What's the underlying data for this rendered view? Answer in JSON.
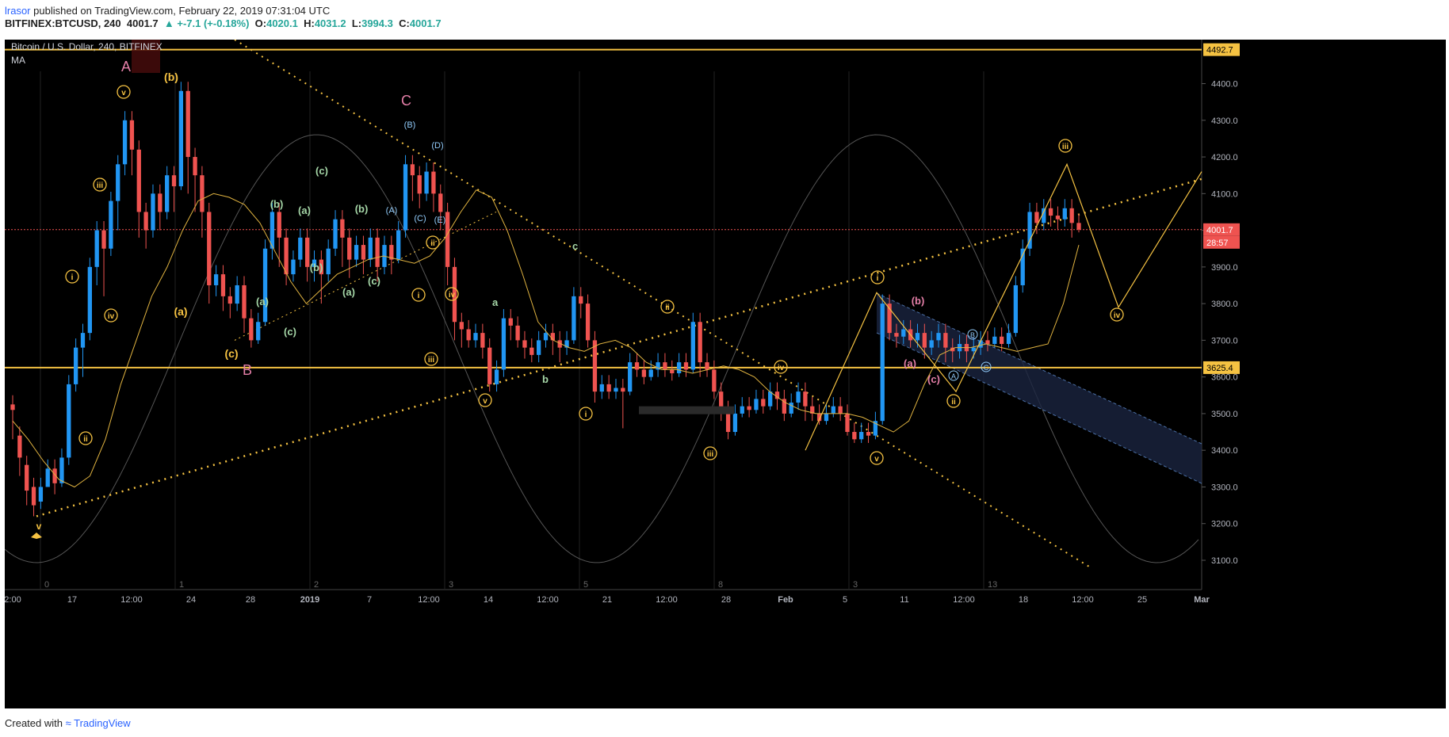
{
  "header": {
    "author": "lrasor",
    "published_text": "published on TradingView.com, February 22, 2019 07:31:04 UTC",
    "symbol": "BITFINEX:BTCUSD, 240",
    "last": "4001.7",
    "change": "▲ +-7.1 (+-0.18%)",
    "o_label": "O:",
    "o_val": "4020.1",
    "h_label": "H:",
    "h_val": "4031.2",
    "l_label": "L:",
    "l_val": "3994.3",
    "c_label": "C:",
    "c_val": "4001.7"
  },
  "legend": {
    "title": "Bitcoin / U.S. Dollar, 240, BITFINEX",
    "indicator": "MA"
  },
  "footer": {
    "created_with": "Created with",
    "brand": "TradingView"
  },
  "colors": {
    "background": "#000000",
    "up": "#2196f3",
    "down": "#ef5350",
    "ma": "#e0b340",
    "annotation": "#f5c242",
    "green_label": "#a5d6a7",
    "pink_label": "#e57fa8",
    "blue_label": "#90caf9",
    "horizontal_line": "#f5c242",
    "last_price_line": "#ef5350"
  },
  "chart_data": {
    "type": "candlestick",
    "symbol": "BTCUSD",
    "exchange": "BITFINEX",
    "interval": "240",
    "ylim": [
      3020,
      4520
    ],
    "yticks": [
      3100,
      3200,
      3300,
      3400,
      3500,
      3600,
      3700,
      3800,
      3900,
      4000,
      4100,
      4200,
      4300,
      4400
    ],
    "xticks": [
      "2:00",
      "17",
      "12:00",
      "24",
      "28",
      "2019",
      "7",
      "12:00",
      "14",
      "12:00",
      "21",
      "12:00",
      "28",
      "Feb",
      "5",
      "11",
      "12:00",
      "18",
      "12:00",
      "25",
      "Mar"
    ],
    "cycle_numbers": [
      "0",
      "1",
      "2",
      "3",
      "5",
      "8",
      "3",
      "13"
    ],
    "price_tags": {
      "top": "4492.7",
      "last": "4001.7",
      "countdown": "28:57",
      "support": "3625.4"
    },
    "horizontal_levels": [
      4492.7,
      3625.4
    ],
    "last_price": 4001.7,
    "candles": [
      [
        3525,
        3510,
        3430
      ],
      [
        3440,
        3380,
        3330
      ],
      [
        3360,
        3290,
        3250
      ],
      [
        3300,
        3250,
        3220
      ],
      [
        3260,
        3300,
        3240
      ],
      [
        3300,
        3350,
        3300
      ],
      [
        3350,
        3310,
        3280
      ],
      [
        3310,
        3380,
        3300
      ],
      [
        3380,
        3580,
        3360
      ],
      [
        3580,
        3680,
        3560
      ],
      [
        3680,
        3720,
        3600
      ],
      [
        3720,
        3900,
        3700
      ],
      [
        3900,
        4000,
        3850
      ],
      [
        4000,
        3950,
        3820
      ],
      [
        3950,
        4080,
        3930
      ],
      [
        4080,
        4180,
        4000
      ],
      [
        4180,
        4300,
        4150
      ],
      [
        4300,
        4220,
        4150
      ],
      [
        4220,
        4050,
        3980
      ],
      [
        4050,
        4000,
        3950
      ],
      [
        4000,
        4100,
        3980
      ],
      [
        4100,
        4050,
        4000
      ],
      [
        4050,
        4150,
        4030
      ],
      [
        4150,
        4120,
        4050
      ],
      [
        4120,
        4380,
        4110
      ],
      [
        4380,
        4200,
        4100
      ],
      [
        4200,
        4150,
        4050
      ],
      [
        4150,
        4050,
        3980
      ],
      [
        4050,
        3850,
        3800
      ],
      [
        3850,
        3880,
        3820
      ],
      [
        3880,
        3820,
        3780
      ],
      [
        3820,
        3800,
        3760
      ],
      [
        3800,
        3850,
        3780
      ],
      [
        3850,
        3760,
        3720
      ],
      [
        3760,
        3700,
        3680
      ],
      [
        3700,
        3750,
        3690
      ],
      [
        3750,
        3950,
        3740
      ],
      [
        3950,
        4050,
        3920
      ],
      [
        4050,
        3980,
        3900
      ],
      [
        3980,
        3880,
        3850
      ],
      [
        3880,
        3920,
        3860
      ],
      [
        3920,
        3980,
        3900
      ],
      [
        3980,
        3900,
        3860
      ],
      [
        3900,
        3920,
        3860
      ],
      [
        3920,
        3880,
        3800
      ],
      [
        3880,
        3950,
        3860
      ],
      [
        3950,
        4030,
        3930
      ],
      [
        4030,
        3980,
        3900
      ],
      [
        3980,
        3920,
        3870
      ],
      [
        3920,
        3960,
        3900
      ],
      [
        3960,
        3920,
        3880
      ],
      [
        3920,
        3980,
        3900
      ],
      [
        3980,
        3900,
        3860
      ],
      [
        3900,
        3960,
        3880
      ],
      [
        3960,
        3920,
        3880
      ],
      [
        3920,
        4000,
        3910
      ],
      [
        4000,
        4180,
        3980
      ],
      [
        4180,
        4150,
        4080
      ],
      [
        4150,
        4100,
        4060
      ],
      [
        4100,
        4160,
        4080
      ],
      [
        4160,
        4100,
        4050
      ],
      [
        4100,
        4050,
        4000
      ],
      [
        4050,
        3900,
        3850
      ],
      [
        3900,
        3750,
        3700
      ],
      [
        3750,
        3730,
        3680
      ],
      [
        3730,
        3700,
        3680
      ],
      [
        3700,
        3720,
        3680
      ],
      [
        3720,
        3680,
        3650
      ],
      [
        3680,
        3580,
        3560
      ],
      [
        3580,
        3620,
        3560
      ],
      [
        3620,
        3760,
        3600
      ],
      [
        3760,
        3740,
        3700
      ],
      [
        3740,
        3700,
        3680
      ],
      [
        3700,
        3680,
        3650
      ],
      [
        3680,
        3660,
        3640
      ],
      [
        3660,
        3700,
        3640
      ],
      [
        3700,
        3720,
        3680
      ],
      [
        3720,
        3700,
        3660
      ],
      [
        3700,
        3680,
        3640
      ],
      [
        3680,
        3700,
        3660
      ],
      [
        3700,
        3820,
        3690
      ],
      [
        3820,
        3800,
        3760
      ],
      [
        3800,
        3700,
        3680
      ],
      [
        3700,
        3560,
        3530
      ],
      [
        3560,
        3580,
        3540
      ],
      [
        3580,
        3560,
        3540
      ],
      [
        3560,
        3570,
        3540
      ],
      [
        3570,
        3560,
        3460
      ],
      [
        3560,
        3640,
        3550
      ],
      [
        3640,
        3620,
        3600
      ],
      [
        3620,
        3600,
        3580
      ],
      [
        3600,
        3620,
        3590
      ],
      [
        3620,
        3640,
        3600
      ],
      [
        3640,
        3620,
        3600
      ],
      [
        3620,
        3610,
        3590
      ],
      [
        3610,
        3640,
        3600
      ],
      [
        3640,
        3620,
        3600
      ],
      [
        3620,
        3750,
        3610
      ],
      [
        3750,
        3640,
        3600
      ],
      [
        3640,
        3620,
        3600
      ],
      [
        3620,
        3560,
        3540
      ],
      [
        3560,
        3510,
        3480
      ],
      [
        3510,
        3450,
        3430
      ],
      [
        3450,
        3500,
        3440
      ],
      [
        3500,
        3520,
        3490
      ],
      [
        3520,
        3510,
        3490
      ],
      [
        3510,
        3540,
        3500
      ],
      [
        3540,
        3520,
        3500
      ],
      [
        3520,
        3560,
        3510
      ],
      [
        3560,
        3540,
        3510
      ],
      [
        3540,
        3500,
        3480
      ],
      [
        3500,
        3530,
        3490
      ],
      [
        3530,
        3560,
        3510
      ],
      [
        3560,
        3520,
        3480
      ],
      [
        3520,
        3500,
        3480
      ],
      [
        3500,
        3480,
        3470
      ],
      [
        3480,
        3500,
        3470
      ],
      [
        3500,
        3520,
        3490
      ],
      [
        3520,
        3500,
        3480
      ],
      [
        3500,
        3450,
        3440
      ],
      [
        3450,
        3430,
        3420
      ],
      [
        3430,
        3450,
        3420
      ],
      [
        3450,
        3440,
        3420
      ],
      [
        3440,
        3480,
        3430
      ],
      [
        3480,
        3800,
        3470
      ],
      [
        3800,
        3720,
        3700
      ],
      [
        3720,
        3710,
        3680
      ],
      [
        3710,
        3730,
        3690
      ],
      [
        3730,
        3700,
        3680
      ],
      [
        3700,
        3720,
        3680
      ],
      [
        3720,
        3680,
        3650
      ],
      [
        3680,
        3700,
        3660
      ],
      [
        3700,
        3720,
        3680
      ],
      [
        3720,
        3680,
        3640
      ],
      [
        3680,
        3670,
        3640
      ],
      [
        3670,
        3690,
        3650
      ],
      [
        3690,
        3670,
        3640
      ],
      [
        3670,
        3680,
        3650
      ],
      [
        3680,
        3700,
        3660
      ],
      [
        3700,
        3690,
        3670
      ],
      [
        3690,
        3710,
        3680
      ],
      [
        3710,
        3690,
        3670
      ],
      [
        3690,
        3720,
        3680
      ],
      [
        3720,
        3850,
        3710
      ],
      [
        3850,
        3950,
        3830
      ],
      [
        3950,
        4050,
        3930
      ],
      [
        4050,
        4020,
        3990
      ],
      [
        4020,
        4060,
        4000
      ],
      [
        4060,
        4040,
        4010
      ],
      [
        4040,
        4030,
        4000
      ],
      [
        4030,
        4060,
        4010
      ],
      [
        4060,
        4020,
        3980
      ],
      [
        4020,
        4001.7,
        3994.3
      ]
    ],
    "moving_average": [
      3480,
      3430,
      3370,
      3320,
      3300,
      3330,
      3430,
      3580,
      3700,
      3820,
      3900,
      4000,
      4080,
      4100,
      4090,
      4070,
      4020,
      3940,
      3860,
      3800,
      3840,
      3880,
      3900,
      3920,
      3930,
      3920,
      3910,
      3930,
      3980,
      4050,
      4110,
      4090,
      4000,
      3880,
      3750,
      3700,
      3680,
      3670,
      3690,
      3700,
      3680,
      3640,
      3620,
      3620,
      3610,
      3620,
      3630,
      3620,
      3600,
      3560,
      3530,
      3510,
      3500,
      3500,
      3500,
      3490,
      3470,
      3450,
      3480,
      3580,
      3660,
      3680,
      3680,
      3690,
      3680,
      3670,
      3680,
      3690,
      3800,
      3960
    ],
    "annotations": [
      {
        "text": "A",
        "kind": "wave-letter"
      },
      {
        "text": "B",
        "kind": "wave-letter"
      },
      {
        "text": "C",
        "kind": "wave-letter"
      },
      {
        "text": "(b)",
        "kind": "minor"
      },
      {
        "text": "(a)",
        "kind": "minor"
      },
      {
        "text": "(c)",
        "kind": "minor"
      },
      {
        "text": "v",
        "kind": "circled"
      },
      {
        "text": "iii",
        "kind": "circled"
      },
      {
        "text": "i",
        "kind": "circled"
      },
      {
        "text": "iv",
        "kind": "circled"
      },
      {
        "text": "ii",
        "kind": "circled"
      },
      {
        "text": "(B)",
        "kind": "blue"
      },
      {
        "text": "(D)",
        "kind": "blue"
      },
      {
        "text": "(A)",
        "kind": "blue"
      },
      {
        "text": "(C)",
        "kind": "blue"
      },
      {
        "text": "(E)",
        "kind": "blue"
      },
      {
        "text": "a",
        "kind": "green"
      },
      {
        "text": "b",
        "kind": "green"
      },
      {
        "text": "c",
        "kind": "green"
      },
      {
        "text": "A",
        "kind": "circled-blue"
      },
      {
        "text": "B",
        "kind": "circled-blue"
      },
      {
        "text": "C",
        "kind": "circled-blue"
      }
    ]
  }
}
